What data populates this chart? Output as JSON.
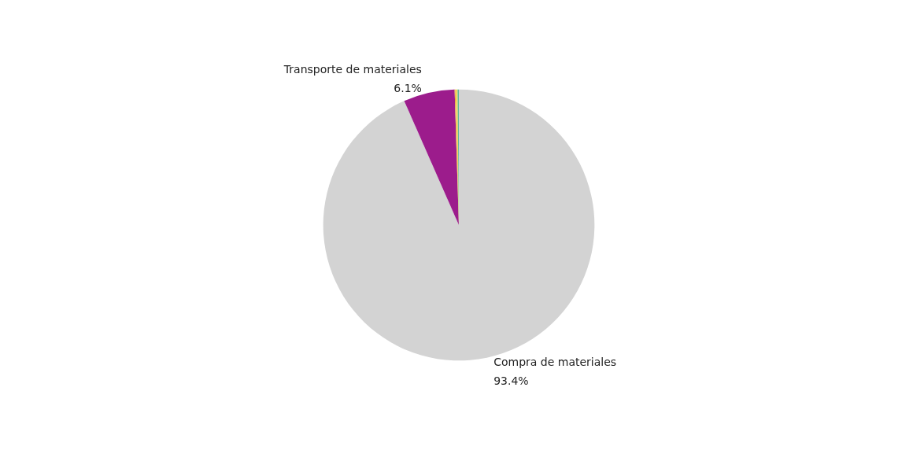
{
  "chart_data": {
    "type": "pie",
    "categories": [
      "Compra de materiales",
      "Transporte de materiales",
      null,
      null,
      null
    ],
    "values": [
      93.4,
      6.1,
      0.1,
      0.25,
      0.15
    ],
    "colors": [
      "#d3d3d3",
      "#9c1c8c",
      "#e8a33a",
      "#f2d65c",
      "#5fb89a"
    ],
    "value_labels": [
      "93.4%",
      "6.1%",
      null,
      null,
      null
    ],
    "legend": false
  }
}
